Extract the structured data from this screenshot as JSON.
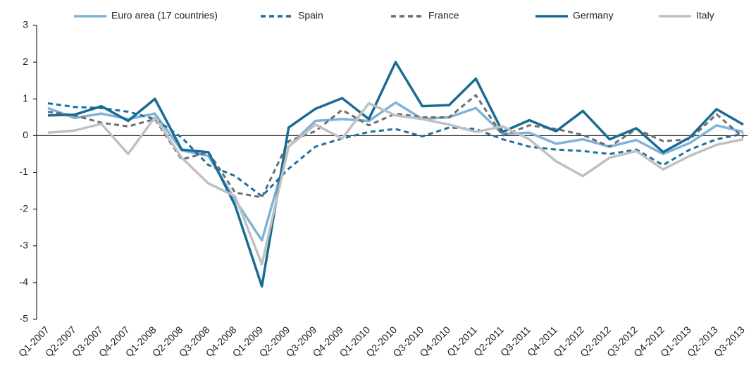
{
  "chart_data": {
    "type": "line",
    "categories": [
      "Q1-2007",
      "Q2-2007",
      "Q3-2007",
      "Q4-2007",
      "Q1-2008",
      "Q2-2008",
      "Q3-2008",
      "Q4-2008",
      "Q1-2009",
      "Q2-2009",
      "Q3-2009",
      "Q4-2009",
      "Q1-2010",
      "Q2-2010",
      "Q3-2010",
      "Q4-2010",
      "Q1-2011",
      "Q2-2011",
      "Q3-2011",
      "Q4-2011",
      "Q1-2012",
      "Q2-2012",
      "Q3-2012",
      "Q4-2012",
      "Q1-2013",
      "Q2-2013",
      "Q3-2013"
    ],
    "series": [
      {
        "name": "Euro area (17 countries)",
        "color": "#7fb3d9",
        "dashed": false,
        "values": [
          0.75,
          0.48,
          0.6,
          0.45,
          0.6,
          -0.4,
          -0.55,
          -1.75,
          -2.85,
          -0.3,
          0.4,
          0.45,
          0.4,
          0.9,
          0.45,
          0.5,
          0.75,
          0.05,
          0.08,
          -0.22,
          -0.1,
          -0.3,
          -0.12,
          -0.5,
          -0.2,
          0.28,
          0.1
        ]
      },
      {
        "name": "Spain",
        "color": "#1f6f9f",
        "dashed": true,
        "values": [
          0.88,
          0.78,
          0.75,
          0.65,
          0.45,
          -0.05,
          -0.8,
          -1.1,
          -1.65,
          -0.9,
          -0.3,
          -0.08,
          0.1,
          0.18,
          -0.02,
          0.22,
          0.18,
          -0.1,
          -0.3,
          -0.38,
          -0.42,
          -0.5,
          -0.38,
          -0.8,
          -0.38,
          -0.1,
          0.05
        ]
      },
      {
        "name": "France",
        "color": "#6e6e6e",
        "dashed": true,
        "values": [
          0.65,
          0.55,
          0.35,
          0.25,
          0.45,
          -0.65,
          -0.45,
          -1.55,
          -1.68,
          -0.15,
          0.12,
          0.7,
          0.28,
          0.6,
          0.5,
          0.5,
          1.1,
          0.0,
          0.28,
          0.18,
          0.02,
          -0.3,
          0.18,
          -0.15,
          -0.1,
          0.58,
          -0.05
        ]
      },
      {
        "name": "Germany",
        "color": "#1a6b94",
        "dashed": false,
        "values": [
          0.55,
          0.57,
          0.8,
          0.4,
          1.0,
          -0.38,
          -0.45,
          -1.9,
          -4.1,
          0.22,
          0.73,
          1.02,
          0.45,
          2.0,
          0.8,
          0.83,
          1.55,
          0.1,
          0.42,
          0.12,
          0.67,
          -0.1,
          0.2,
          -0.45,
          -0.05,
          0.72,
          0.3
        ]
      },
      {
        "name": "Italy",
        "color": "#c0c0c0",
        "dashed": false,
        "values": [
          0.08,
          0.14,
          0.32,
          -0.5,
          0.5,
          -0.6,
          -1.3,
          -1.65,
          -3.5,
          -0.3,
          0.3,
          -0.08,
          0.88,
          0.55,
          0.45,
          0.3,
          0.1,
          0.25,
          -0.1,
          -0.7,
          -1.1,
          -0.6,
          -0.42,
          -0.92,
          -0.55,
          -0.25,
          -0.1
        ]
      }
    ],
    "ylim": [
      -5,
      3
    ],
    "yticks": [
      -5,
      -4,
      -3,
      -2,
      -1,
      0,
      1,
      2,
      3
    ],
    "grid": false,
    "legend": "top"
  }
}
